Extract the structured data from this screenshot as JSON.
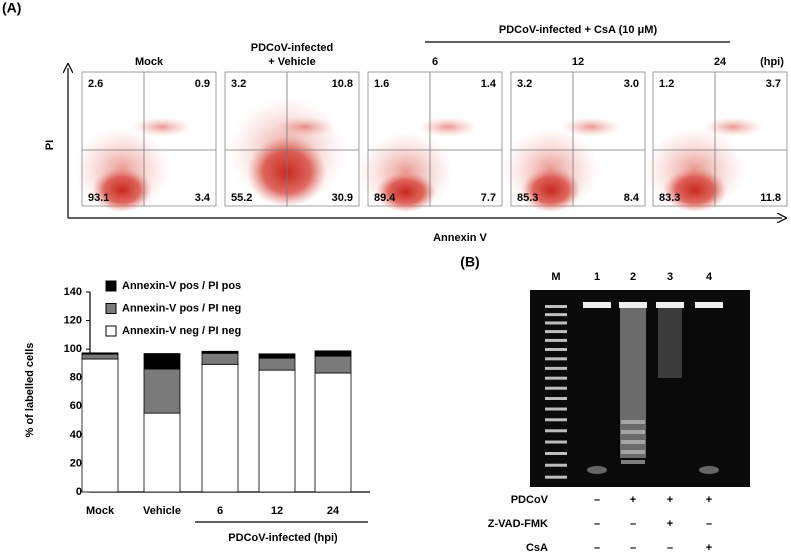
{
  "panel_a_label": "(A)",
  "flow_panel": {
    "group_label": "PDCoV-infected + CsA (10 μM)",
    "unit_label": "(hpi)",
    "x_label": "Annexin V",
    "y_label": "PI",
    "plots": [
      {
        "title": [
          "Mock"
        ],
        "quadrants": [
          "2.6",
          "0.9",
          "93.1",
          "3.4"
        ]
      },
      {
        "title": [
          "PDCoV-infected",
          "+ Vehicle"
        ],
        "quadrants": [
          "3.2",
          "10.8",
          "55.2",
          "30.9"
        ]
      },
      {
        "title": [
          "6"
        ],
        "quadrants": [
          "1.6",
          "1.4",
          "89.4",
          "7.7"
        ]
      },
      {
        "title": [
          "12"
        ],
        "quadrants": [
          "3.2",
          "3.0",
          "85.3",
          "8.4"
        ]
      },
      {
        "title": [
          "24"
        ],
        "quadrants": [
          "1.2",
          "3.7",
          "83.3",
          "11.8"
        ]
      }
    ]
  },
  "chart_data": {
    "type": "stacked_bar",
    "y_label": "% of labelled cells",
    "categories": [
      "Mock",
      "Vehicle",
      "6",
      "12",
      "24"
    ],
    "group_label": "PDCoV-infected (hpi)",
    "series": [
      {
        "name": "Annexin-V neg / PI neg",
        "color": "#ffffff",
        "values": [
          93.1,
          55.2,
          89.4,
          85.3,
          83.3
        ]
      },
      {
        "name": "Annexin-V pos / PI neg",
        "color": "#7a7a7a",
        "values": [
          3.4,
          30.9,
          7.7,
          8.4,
          11.8
        ]
      },
      {
        "name": "Annexin-V pos / PI pos",
        "color": "#000000",
        "values": [
          0.9,
          10.8,
          1.4,
          3.0,
          3.7
        ]
      }
    ],
    "ylim": [
      0,
      140
    ],
    "yticks": [
      0,
      20,
      40,
      60,
      80,
      100,
      120,
      140
    ]
  },
  "gel_panel": {
    "label": "(B)",
    "lanes": [
      "M",
      "1",
      "2",
      "3",
      "4"
    ],
    "conditions": [
      {
        "name": "PDCoV",
        "marks": [
          "–",
          "+",
          "+",
          "+"
        ]
      },
      {
        "name": "Z-VAD-FMK",
        "marks": [
          "–",
          "–",
          "+",
          "–"
        ]
      },
      {
        "name": "CsA",
        "marks": [
          "–",
          "–",
          "–",
          "+"
        ]
      }
    ]
  }
}
